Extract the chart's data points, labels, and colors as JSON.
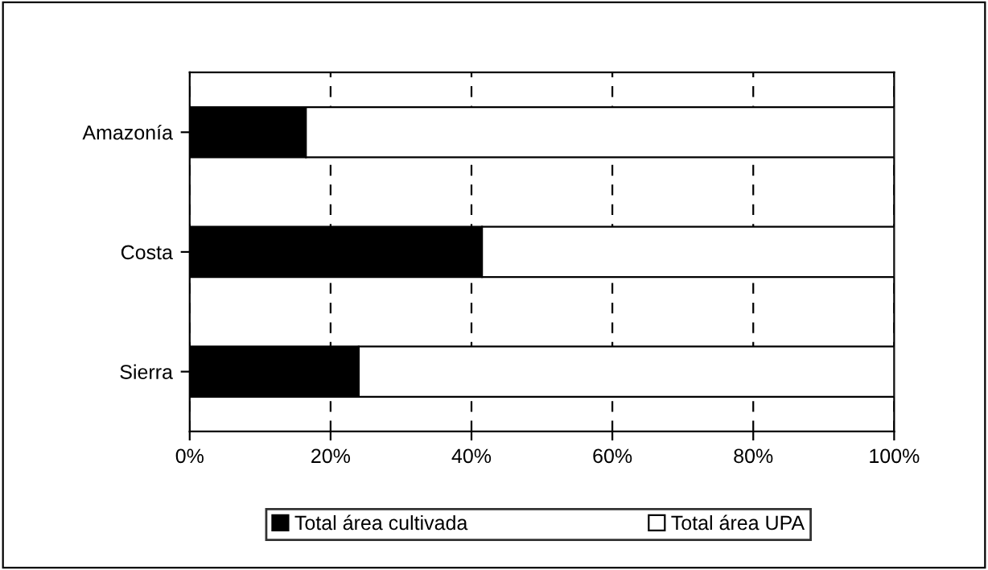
{
  "chart_data": {
    "type": "bar",
    "orientation": "horizontal",
    "stacked": true,
    "categories": [
      "Amazonía",
      "Costa",
      "Sierra"
    ],
    "series": [
      {
        "name": "Total área cultivada",
        "color": "#000000",
        "values": [
          16.5,
          41.5,
          24
        ]
      },
      {
        "name": "Total área UPA",
        "color": "#ffffff",
        "values": [
          83.5,
          58.5,
          76
        ]
      }
    ],
    "xlim": [
      0,
      100
    ],
    "xticks": [
      {
        "value": 0,
        "label": "0%"
      },
      {
        "value": 20,
        "label": "20%"
      },
      {
        "value": 40,
        "label": "40%"
      },
      {
        "value": 60,
        "label": "60%"
      },
      {
        "value": 80,
        "label": "80%"
      },
      {
        "value": 100,
        "label": "100%"
      }
    ],
    "grid": "x",
    "legend": "bottom"
  }
}
